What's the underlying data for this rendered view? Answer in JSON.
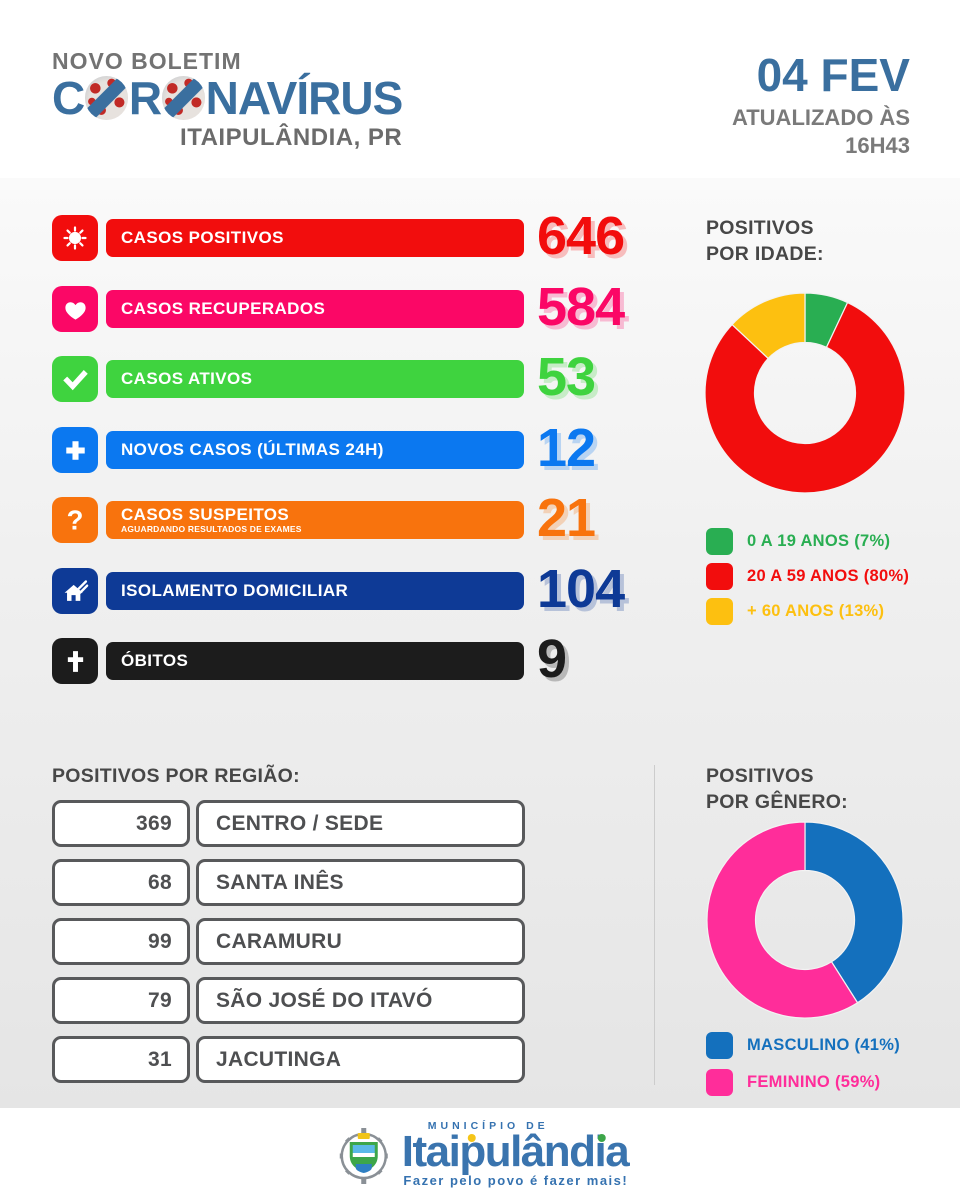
{
  "header": {
    "kicker": "NOVO BOLETIM",
    "title_parts": {
      "p1": "C",
      "p2": "R",
      "p3": "NAVÍRUS"
    },
    "subtitle": "ITAIPULÂNDIA, PR",
    "date": "04 FEV",
    "updated": "ATUALIZADO ÀS\n16H43"
  },
  "stats": {
    "rows": [
      {
        "icon": "virus-icon",
        "label": "CASOS POSITIVOS",
        "value": "646",
        "color": "#f20d0d"
      },
      {
        "icon": "heart-icon",
        "label": "CASOS RECUPERADOS",
        "value": "584",
        "color": "#fb0766"
      },
      {
        "icon": "check-icon",
        "label": "CASOS ATIVOS",
        "value": "53",
        "color": "#3fd33f"
      },
      {
        "icon": "plus-icon",
        "label": "NOVOS CASOS (ÚLTIMAS 24H)",
        "value": "12",
        "color": "#0b78f0"
      },
      {
        "icon": "question-icon",
        "label": "CASOS SUSPEITOS",
        "sublabel": "AGUARDANDO RESULTADOS DE EXAMES",
        "value": "21",
        "color": "#f8730d"
      },
      {
        "icon": "house-icon",
        "label": "ISOLAMENTO DOMICILIAR",
        "value": "104",
        "color": "#0e3a96"
      },
      {
        "icon": "cross-icon",
        "label": "ÓBITOS",
        "value": "9",
        "color": "#1c1c1c"
      }
    ]
  },
  "chart_data": [
    {
      "type": "pie",
      "donut": true,
      "title": "POSITIVOS\nPOR IDADE:",
      "legend_position": "bottom",
      "slices": [
        {
          "label": "0 A 19 ANOS (7%)",
          "value": 7,
          "color": "#29ae52"
        },
        {
          "label": "20 A 59 ANOS (80%)",
          "value": 80,
          "color": "#f20d0d"
        },
        {
          "label": "+ 60 ANOS (13%)",
          "value": 13,
          "color": "#fdc010"
        }
      ]
    },
    {
      "type": "pie",
      "donut": true,
      "title": "POSITIVOS\nPOR GÊNERO:",
      "legend_position": "bottom",
      "slices": [
        {
          "label": "MASCULINO (41%)",
          "value": 41,
          "color": "#1470bd"
        },
        {
          "label": "FEMININO (59%)",
          "value": 59,
          "color": "#ff2d9a"
        }
      ]
    }
  ],
  "regions": {
    "title": "POSITIVOS POR REGIÃO:",
    "rows": [
      {
        "value": "369",
        "name": "CENTRO / SEDE"
      },
      {
        "value": "68",
        "name": "SANTA INÊS"
      },
      {
        "value": "99",
        "name": "CARAMURU"
      },
      {
        "value": "79",
        "name": "SÃO JOSÉ DO ITAVÓ"
      },
      {
        "value": "31",
        "name": "JACUTINGA"
      }
    ]
  },
  "footer": {
    "logo_small": "MUNICÍPIO DE",
    "logo_name": "Itaipulândia",
    "tagline": "Fazer pelo povo é fazer mais!"
  }
}
